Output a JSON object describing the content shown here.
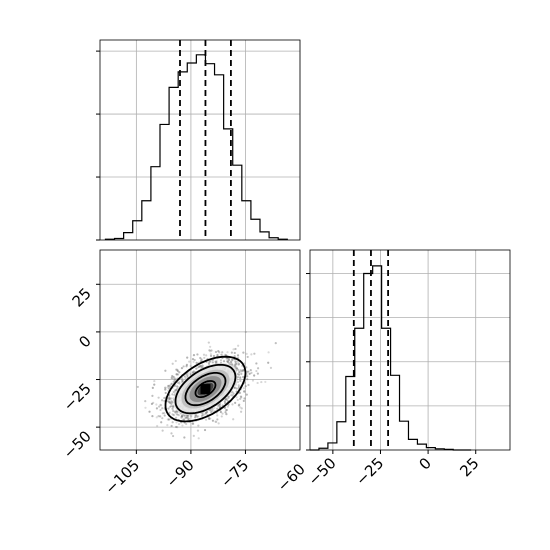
{
  "chart_data": {
    "type": "corner",
    "parameters": [
      {
        "hist_type": "histogram",
        "axis_range": [
          -115,
          -60
        ],
        "quantiles": [
          -93,
          -86,
          -79
        ],
        "bins_left_edges": [
          -113.5,
          -111.0,
          -108.5,
          -106.0,
          -103.5,
          -101.0,
          -98.5,
          -96.0,
          -93.5,
          -91.0,
          -88.5,
          -86.0,
          -83.5,
          -81.0,
          -78.5,
          -76.0,
          -73.5,
          -71.0,
          -68.5,
          -66.0
        ],
        "bin_width": 2.5,
        "counts": [
          1,
          2,
          10,
          26,
          53,
          99,
          156,
          206,
          227,
          239,
          250,
          238,
          223,
          150,
          101,
          53,
          28,
          11,
          3,
          1
        ],
        "count_max": 270
      },
      {
        "hist_type": "histogram",
        "axis_range": [
          -62,
          43
        ],
        "quantiles": [
          -39,
          -30,
          -21
        ],
        "bins_left_edges": [
          -62.0,
          -57.3,
          -52.6,
          -47.9,
          -43.2,
          -38.5,
          -33.8,
          -29.1,
          -24.4,
          -19.7,
          -15.0,
          -10.3,
          -5.6,
          -0.9,
          3.8,
          8.5,
          13.2,
          17.9
        ],
        "bin_width": 4.7,
        "counts": [
          0,
          3,
          12,
          48,
          125,
          207,
          300,
          313,
          207,
          127,
          49,
          18,
          10,
          4,
          2,
          1,
          0,
          0
        ],
        "count_max": 340
      }
    ],
    "scatter_2d": {
      "x_param": 0,
      "y_param": 1,
      "xlim": [
        -115,
        -60
      ],
      "ylim": [
        -62,
        43
      ],
      "center": [
        -86,
        -30
      ],
      "sd": [
        5.5,
        8.5
      ],
      "correlation": 0.5,
      "contour_levels_sigma": [
        0.5,
        1.0,
        1.5,
        2.0
      ],
      "density_fill_levels_sigma": [
        0.4,
        0.8,
        1.2,
        1.6
      ]
    },
    "x_tick_labels_param0": [
      "−105",
      "−90",
      "−75",
      "−60"
    ],
    "x_tick_values_param0": [
      -105,
      -90,
      -75,
      -60
    ],
    "y_tick_labels_param1": [
      "25",
      "0",
      "−25",
      "−50"
    ],
    "y_tick_values_param1": [
      25,
      0,
      -25,
      -50
    ],
    "x_tick_labels_param1": [
      "−50",
      "−25",
      "0",
      "25"
    ],
    "x_tick_values_param1": [
      -50,
      -25,
      0,
      25
    ],
    "hist0_y_ticks": [
      0,
      85,
      170,
      255
    ],
    "hist1_y_ticks": [
      0,
      75,
      150,
      225,
      300
    ],
    "x_tick_labels_hist1_left": [
      "−60"
    ],
    "x_tick_values_hist1_left": [
      -60
    ],
    "grid": true,
    "legend": "none"
  }
}
